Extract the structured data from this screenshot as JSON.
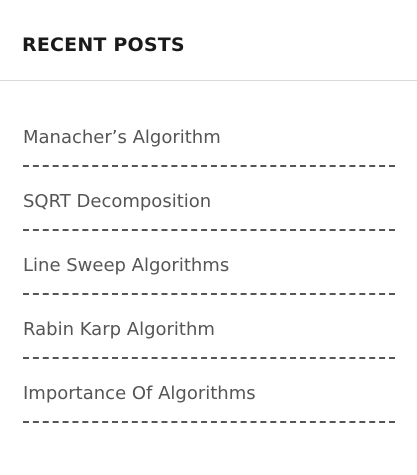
{
  "widget": {
    "title": "RECENT POSTS"
  },
  "posts": [
    {
      "title": "Manacher’s Algorithm"
    },
    {
      "title": "SQRT Decomposition"
    },
    {
      "title": "Line Sweep Algorithms"
    },
    {
      "title": "Rabin Karp Algorithm"
    },
    {
      "title": "Importance Of Algorithms"
    }
  ]
}
